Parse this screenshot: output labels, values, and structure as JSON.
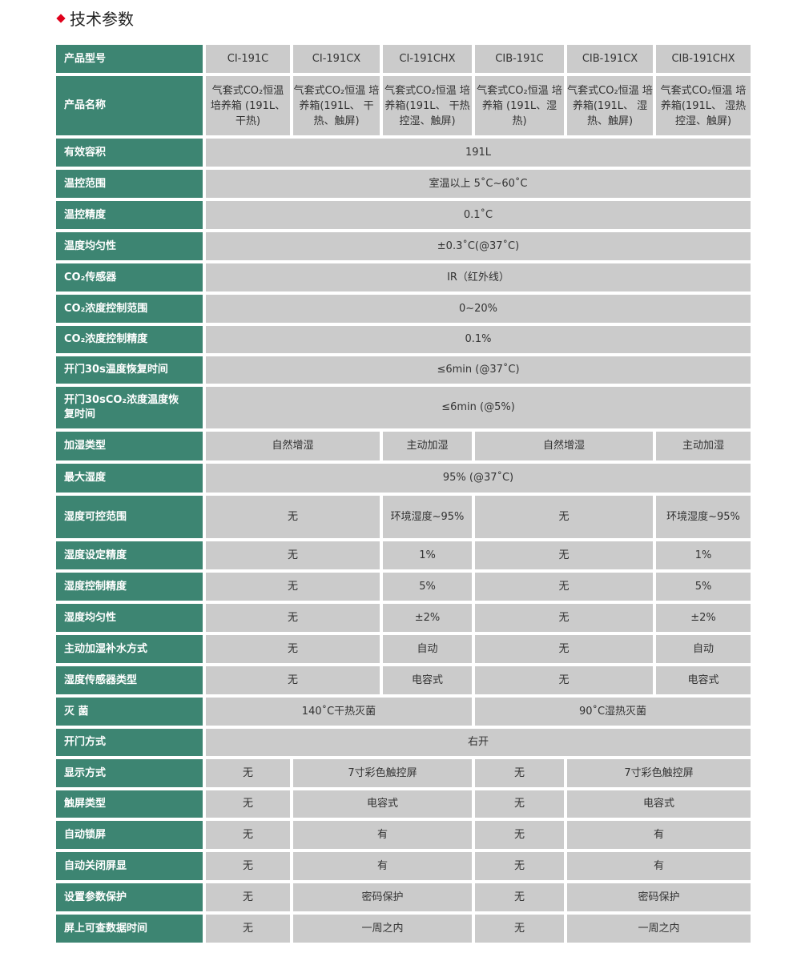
{
  "title": "技术参数",
  "colors": {
    "header_green": "#3d8572",
    "cell_gray": "#cbcbcb",
    "accent_red": "#e0001b"
  },
  "rows": [
    {
      "label": "产品型号",
      "cells": [
        [
          "CI-191C",
          1
        ],
        [
          "CI-191CX",
          1
        ],
        [
          "CI-191CHX",
          1
        ],
        [
          "CIB-191C",
          1
        ],
        [
          "CIB-191CX",
          1
        ],
        [
          "CIB-191CHX",
          1
        ]
      ]
    },
    {
      "label": "产品名称",
      "cells": [
        [
          "气套式CO₂恒温 培养箱 (191L、干热)",
          1
        ],
        [
          "气套式CO₂恒温 培养箱(191L、 干热、触屏)",
          1
        ],
        [
          "气套式CO₂恒温 培养箱(191L、 干热控湿、触屏)",
          1
        ],
        [
          "气套式CO₂恒温 培养箱 (191L、湿热)",
          1
        ],
        [
          "气套式CO₂恒温 培养箱(191L、 湿热、触屏)",
          1
        ],
        [
          "气套式CO₂恒温 培养箱(191L、 湿热控湿、触屏)",
          1
        ]
      ]
    },
    {
      "label": "有效容积",
      "cells": [
        [
          "191L",
          6
        ]
      ]
    },
    {
      "label": "温控范围",
      "cells": [
        [
          "室温以上 5˚C~60˚C",
          6
        ]
      ]
    },
    {
      "label": "温控精度",
      "cells": [
        [
          "0.1˚C",
          6
        ]
      ]
    },
    {
      "label": "温度均匀性",
      "cells": [
        [
          "±0.3˚C(@37˚C)",
          6
        ]
      ]
    },
    {
      "label": "CO₂传感器",
      "cells": [
        [
          "IR（红外线）",
          6
        ]
      ]
    },
    {
      "label": "CO₂浓度控制范围",
      "cells": [
        [
          "0~20%",
          6
        ]
      ]
    },
    {
      "label": "CO₂浓度控制精度",
      "cells": [
        [
          "0.1%",
          6
        ]
      ]
    },
    {
      "label": "开门30s温度恢复时间",
      "cells": [
        [
          "≤6min (@37˚C)",
          6
        ]
      ]
    },
    {
      "label": "开门30sCO₂浓度温度恢复时间",
      "cells": [
        [
          "≤6min (@5%)",
          6
        ]
      ]
    },
    {
      "label": "加湿类型",
      "cells": [
        [
          "自然增湿",
          2
        ],
        [
          "主动加湿",
          1
        ],
        [
          "自然增湿",
          2
        ],
        [
          "主动加湿",
          1
        ]
      ]
    },
    {
      "label": "最大湿度",
      "cells": [
        [
          "95% (@37˚C)",
          6
        ]
      ]
    },
    {
      "label": "湿度可控范围",
      "cells": [
        [
          "无",
          2
        ],
        [
          "环境湿度~95%",
          1
        ],
        [
          "无",
          2
        ],
        [
          "环境湿度~95%",
          1
        ]
      ]
    },
    {
      "label": "湿度设定精度",
      "cells": [
        [
          "无",
          2
        ],
        [
          "1%",
          1
        ],
        [
          "无",
          2
        ],
        [
          "1%",
          1
        ]
      ]
    },
    {
      "label": "湿度控制精度",
      "cells": [
        [
          "无",
          2
        ],
        [
          "5%",
          1
        ],
        [
          "无",
          2
        ],
        [
          "5%",
          1
        ]
      ]
    },
    {
      "label": "湿度均匀性",
      "cells": [
        [
          "无",
          2
        ],
        [
          "±2%",
          1
        ],
        [
          "无",
          2
        ],
        [
          "±2%",
          1
        ]
      ]
    },
    {
      "label": "主动加湿补水方式",
      "cells": [
        [
          "无",
          2
        ],
        [
          "自动",
          1
        ],
        [
          "无",
          2
        ],
        [
          "自动",
          1
        ]
      ]
    },
    {
      "label": "湿度传感器类型",
      "cells": [
        [
          "无",
          2
        ],
        [
          "电容式",
          1
        ],
        [
          "无",
          2
        ],
        [
          "电容式",
          1
        ]
      ]
    },
    {
      "label": "灭 菌",
      "cells": [
        [
          "140˚C干热灭菌",
          3
        ],
        [
          "90˚C湿热灭菌",
          3
        ]
      ]
    },
    {
      "label": "开门方式",
      "cells": [
        [
          "右开",
          6
        ]
      ]
    },
    {
      "label": "显示方式",
      "cells": [
        [
          "无",
          1
        ],
        [
          "7寸彩色触控屏",
          2
        ],
        [
          "无",
          1
        ],
        [
          "7寸彩色触控屏",
          2
        ]
      ]
    },
    {
      "label": "触屏类型",
      "cells": [
        [
          "无",
          1
        ],
        [
          "电容式",
          2
        ],
        [
          "无",
          1
        ],
        [
          "电容式",
          2
        ]
      ]
    },
    {
      "label": "自动锁屏",
      "cells": [
        [
          "无",
          1
        ],
        [
          "有",
          2
        ],
        [
          "无",
          1
        ],
        [
          "有",
          2
        ]
      ]
    },
    {
      "label": "自动关闭屏显",
      "cells": [
        [
          "无",
          1
        ],
        [
          "有",
          2
        ],
        [
          "无",
          1
        ],
        [
          "有",
          2
        ]
      ]
    },
    {
      "label": "设置参数保护",
      "cells": [
        [
          "无",
          1
        ],
        [
          "密码保护",
          2
        ],
        [
          "无",
          1
        ],
        [
          "密码保护",
          2
        ]
      ]
    },
    {
      "label": "屏上可查数据时间",
      "cells": [
        [
          "无",
          1
        ],
        [
          "一周之内",
          2
        ],
        [
          "无",
          1
        ],
        [
          "一周之内",
          2
        ]
      ]
    }
  ]
}
